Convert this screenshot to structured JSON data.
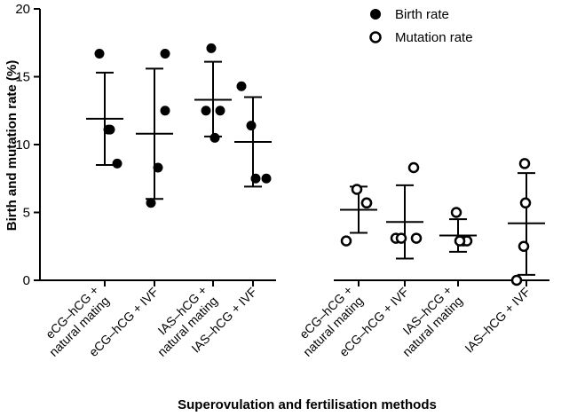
{
  "chart_data": {
    "type": "scatter",
    "xlabel": "Superovulation and fertilisation methods",
    "ylabel": "Birth and mutation rate (%)",
    "ylim": [
      0,
      20
    ],
    "yticks": [
      0,
      5,
      10,
      15,
      20
    ],
    "legend_position": "top-right",
    "categories": [
      [
        "eCG–hCG +",
        "natural mating"
      ],
      [
        "eCG–hCG + IVF"
      ],
      [
        "IAS–hCG +",
        "natural mating"
      ],
      [
        "IAS–hCG + IVF"
      ],
      [
        "eCG–hCG +",
        "natural mating"
      ],
      [
        "eCG–hCG + IVF"
      ],
      [
        "IAS–hCG +",
        "natural mating"
      ],
      [
        "IAS–hCG + IVF"
      ]
    ],
    "series": [
      {
        "name": "Birth rate",
        "marker": "filled-circle",
        "color": "#000000",
        "groups": [
          {
            "category_index": 0,
            "points": [
              16.7,
              11.1,
              11.1,
              8.6
            ],
            "mean": 11.9,
            "sd_low": 8.5,
            "sd_high": 15.3
          },
          {
            "category_index": 1,
            "points": [
              16.7,
              12.5,
              8.3,
              5.7
            ],
            "mean": 10.8,
            "sd_low": 6.0,
            "sd_high": 15.6
          },
          {
            "category_index": 2,
            "points": [
              17.1,
              12.5,
              12.5,
              10.5
            ],
            "mean": 13.3,
            "sd_low": 10.6,
            "sd_high": 16.1
          },
          {
            "category_index": 3,
            "points": [
              14.3,
              11.4,
              7.5,
              7.5
            ],
            "mean": 10.2,
            "sd_low": 6.9,
            "sd_high": 13.5
          }
        ]
      },
      {
        "name": "Mutation rate",
        "marker": "open-circle",
        "color": "#000000",
        "groups": [
          {
            "category_index": 4,
            "points": [
              6.7,
              5.7,
              5.7,
              2.9
            ],
            "mean": 5.2,
            "sd_low": 3.5,
            "sd_high": 6.9
          },
          {
            "category_index": 5,
            "points": [
              8.3,
              3.1,
              3.1,
              3.1
            ],
            "mean": 4.3,
            "sd_low": 1.6,
            "sd_high": 7.0
          },
          {
            "category_index": 6,
            "points": [
              5.0,
              2.9,
              2.9,
              2.9
            ],
            "mean": 3.3,
            "sd_low": 2.1,
            "sd_high": 4.5
          },
          {
            "category_index": 7,
            "points": [
              8.6,
              5.7,
              2.5,
              0.0
            ],
            "mean": 4.2,
            "sd_low": 0.4,
            "sd_high": 7.9
          }
        ]
      }
    ]
  }
}
